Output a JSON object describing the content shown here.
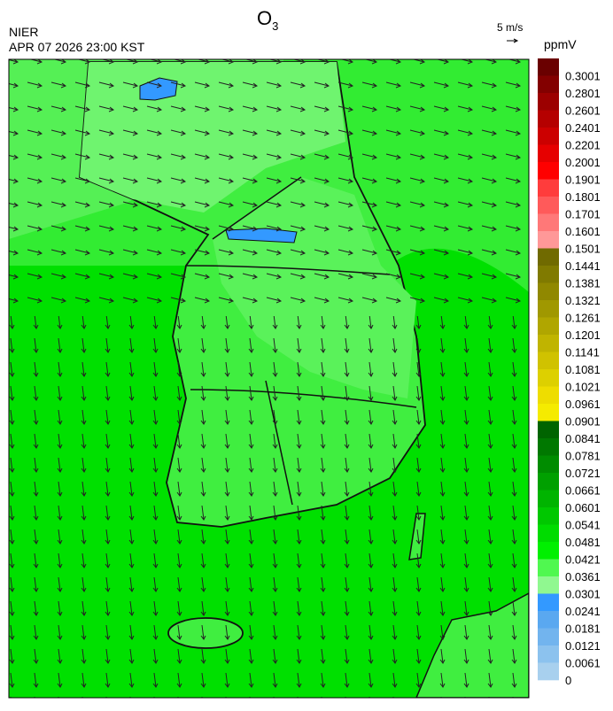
{
  "header": {
    "agency": "NIER",
    "timestamp": "APR 07 2026 23:00 KST",
    "title": {
      "main": "O",
      "subscript": "3"
    },
    "wind_scale": "5 m/s",
    "unit": "ppmV"
  },
  "colorbar": {
    "labels": [
      "0.3001",
      "0.2801",
      "0.2601",
      "0.2401",
      "0.2201",
      "0.2001",
      "0.1901",
      "0.1801",
      "0.1701",
      "0.1601",
      "0.1501",
      "0.1441",
      "0.1381",
      "0.1321",
      "0.1261",
      "0.1201",
      "0.1141",
      "0.1081",
      "0.1021",
      "0.0961",
      "0.0901",
      "0.0841",
      "0.0781",
      "0.0721",
      "0.0661",
      "0.0601",
      "0.0541",
      "0.0481",
      "0.0421",
      "0.0361",
      "0.0301",
      "0.0241",
      "0.0181",
      "0.0121",
      "0.0061",
      "0"
    ],
    "colors": [
      "#6a0000",
      "#830000",
      "#9c0000",
      "#b50000",
      "#cc0000",
      "#e60000",
      "#ff0000",
      "#ff3c3c",
      "#ff5a5a",
      "#ff7878",
      "#ff9898",
      "#706a00",
      "#807a00",
      "#908800",
      "#a09800",
      "#b0a600",
      "#c0b400",
      "#d0c200",
      "#ddd000",
      "#eedd00",
      "#f5eb00",
      "#006400",
      "#007800",
      "#008c00",
      "#00a000",
      "#00b400",
      "#00c800",
      "#00dc00",
      "#00f000",
      "#50f850",
      "#90f890",
      "#3399ff",
      "#5aa8f0",
      "#72b4ee",
      "#8cc2ee",
      "#a8d0ee"
    ]
  }
}
